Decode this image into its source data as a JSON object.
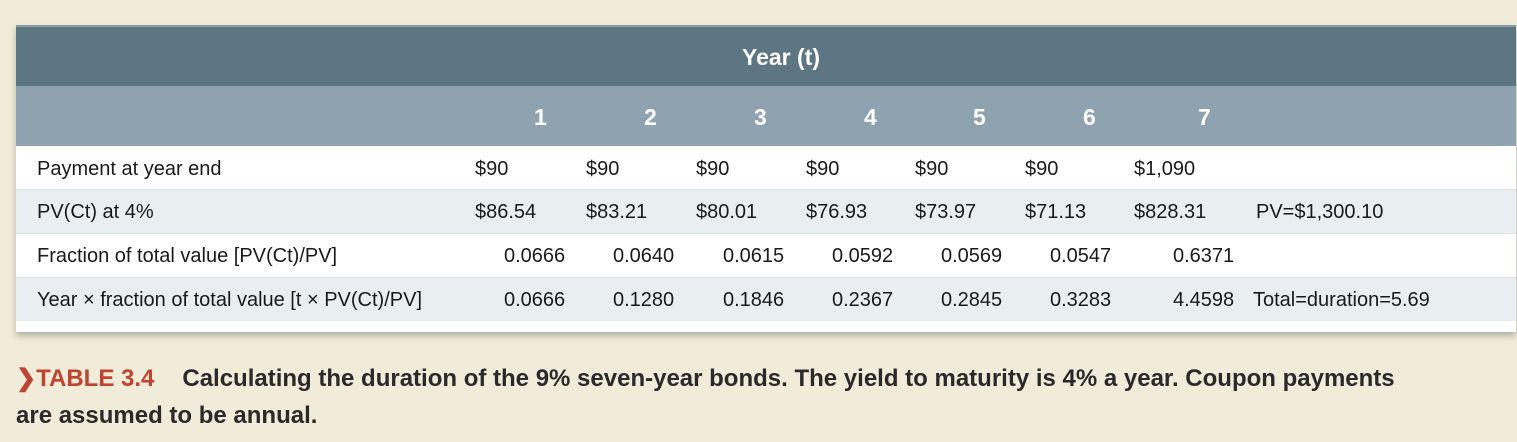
{
  "header": {
    "year_label": "Year (t)",
    "years": [
      "1",
      "2",
      "3",
      "4",
      "5",
      "6",
      "7"
    ]
  },
  "rows": [
    {
      "label": "Payment at year end",
      "cells": [
        "$90",
        "$90",
        "$90",
        "$90",
        "$90",
        "$90",
        "$1,090"
      ],
      "extra": ""
    },
    {
      "label": "PV(Ct) at 4%",
      "cells": [
        "$86.54",
        "$83.21",
        "$80.01",
        "$76.93",
        "$73.97",
        "$71.13",
        "$828.31"
      ],
      "extra": "PV=$1,300.10"
    },
    {
      "label": "Fraction of total value [PV(Ct)/PV]",
      "cells": [
        "0.0666",
        "0.0640",
        "0.0615",
        "0.0592",
        "0.0569",
        "0.0547",
        "0.6371"
      ],
      "extra": ""
    },
    {
      "label": "Year × fraction of total value [t × PV(Ct)/PV]",
      "cells": [
        "0.0666",
        "0.1280",
        "0.1846",
        "0.2367",
        "0.2845",
        "0.3283",
        "4.4598"
      ],
      "extra": "Total=duration=5.69"
    }
  ],
  "caption": {
    "marker": "❯",
    "number": "TABLE 3.4",
    "text": "Calculating the duration of the 9% seven-year bonds. The yield to maturity is 4% a year. Coupon payments are assumed to be annual."
  },
  "colors": {
    "header_dark": "#5d7684",
    "header_light": "#8ea3af",
    "accent": "#c1432f",
    "background": "#f1ecd9"
  }
}
